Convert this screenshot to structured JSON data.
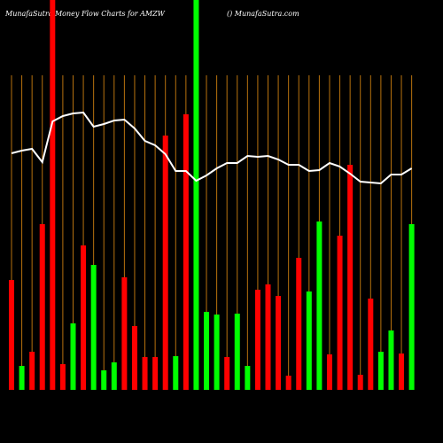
{
  "chart_data": {
    "type": "bar",
    "title": "MunafaSutra  Money Flow  Charts for AMZW",
    "subtitle": "() MunafaSutra.com",
    "ylim": [
      0,
      440
    ],
    "grid_color": "#b8720e",
    "values": [
      124,
      27,
      43,
      187,
      440,
      29,
      75,
      163,
      141,
      22,
      31,
      127,
      72,
      37,
      37,
      287,
      38,
      311,
      440,
      88,
      85,
      37,
      86,
      27,
      113,
      119,
      106,
      16,
      149,
      111,
      190,
      40,
      174,
      254,
      17,
      103,
      43,
      67,
      41,
      187
    ],
    "colors": [
      "#ff0000",
      "#00ff00",
      "#ff0000",
      "#ff0000",
      "#ff0000",
      "#ff0000",
      "#00ff00",
      "#ff0000",
      "#00ff00",
      "#00ff00",
      "#00ff00",
      "#ff0000",
      "#ff0000",
      "#ff0000",
      "#ff0000",
      "#ff0000",
      "#00ff00",
      "#ff0000",
      "#00ff00",
      "#00ff00",
      "#00ff00",
      "#ff0000",
      "#00ff00",
      "#00ff00",
      "#ff0000",
      "#ff0000",
      "#ff0000",
      "#ff0000",
      "#ff0000",
      "#00ff00",
      "#00ff00",
      "#ff0000",
      "#ff0000",
      "#ff0000",
      "#ff0000",
      "#ff0000",
      "#00ff00",
      "#00ff00",
      "#ff0000",
      "#00ff00"
    ],
    "line": {
      "color": "#ffffff",
      "values": [
        267,
        270,
        272,
        257,
        303,
        309,
        312,
        313,
        297,
        300,
        304,
        305,
        295,
        281,
        276,
        266,
        247,
        247,
        236,
        242,
        250,
        256,
        256,
        264,
        263,
        264,
        260,
        254,
        254,
        247,
        248,
        256,
        252,
        244,
        235,
        234,
        233,
        243,
        243,
        250
      ]
    }
  }
}
